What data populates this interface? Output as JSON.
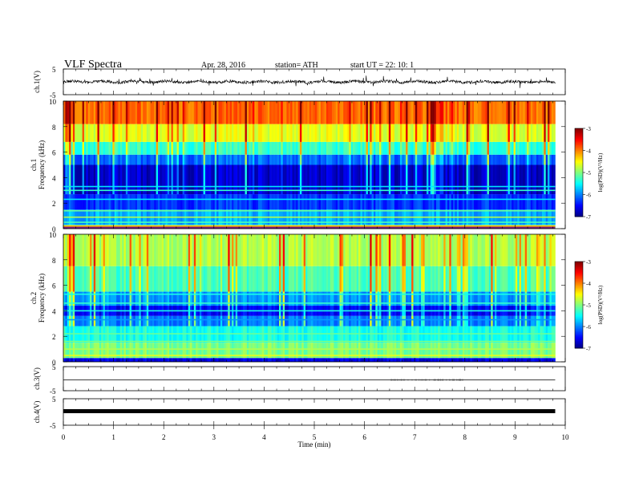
{
  "header": {
    "title": "VLF  Spectra",
    "date": "Apr. 28, 2016",
    "station": "station= ATH",
    "start": "start  UT  =    22: 10: 1"
  },
  "chart_data": [
    {
      "type": "line",
      "panel": "ch1",
      "ylabel": "ch.1(V)",
      "yticks": [
        "5",
        "-5"
      ],
      "ylim": [
        -5,
        5
      ],
      "xlim": [
        0,
        10
      ],
      "data_end_min": 9.8,
      "description_level": "noisy trace centered near 0 V with spikes to about ±2 V"
    },
    {
      "type": "heatmap",
      "panel": "ch1-spectrogram",
      "ylabel": "ch.1\nFrequency (kHz)",
      "ylim": [
        0,
        10
      ],
      "yticks": [
        "10",
        "8",
        "6",
        "4",
        "2",
        "0"
      ],
      "xlim": [
        0,
        10
      ],
      "colorbar": {
        "label": "log(PSD)(V²/Hz)",
        "range": [
          -7,
          -3
        ],
        "ticks": [
          "-3",
          "-4",
          "-5",
          "-6",
          "-7"
        ]
      },
      "bands": [
        {
          "from": 0.0,
          "to": 0.3,
          "level": -5.0
        },
        {
          "from": 0.3,
          "to": 1.5,
          "level": -5.8
        },
        {
          "from": 1.5,
          "to": 2.7,
          "level": -6.3
        },
        {
          "from": 2.7,
          "to": 5.0,
          "level": -6.7
        },
        {
          "from": 5.0,
          "to": 5.8,
          "level": -6.1
        },
        {
          "from": 5.8,
          "to": 6.8,
          "level": -5.3
        },
        {
          "from": 6.8,
          "to": 8.2,
          "level": -4.6
        },
        {
          "from": 8.2,
          "to": 10.0,
          "level": -3.9
        }
      ]
    },
    {
      "type": "heatmap",
      "panel": "ch2-spectrogram",
      "ylabel": "ch.2\nFrequency (kHz)",
      "ylim": [
        0,
        10
      ],
      "yticks": [
        "10",
        "8",
        "6",
        "4",
        "2",
        "0"
      ],
      "xlim": [
        0,
        10
      ],
      "colorbar": {
        "label": "log(PSD)(V²/Hz)",
        "range": [
          -7,
          -3
        ],
        "ticks": [
          "-3",
          "-4",
          "-5",
          "-6",
          "-7"
        ]
      },
      "bands": [
        {
          "from": 0.0,
          "to": 0.3,
          "level": -6.6
        },
        {
          "from": 0.3,
          "to": 1.5,
          "level": -5.0
        },
        {
          "from": 1.5,
          "to": 2.8,
          "level": -5.4
        },
        {
          "from": 2.8,
          "to": 3.6,
          "level": -6.0
        },
        {
          "from": 3.6,
          "to": 4.4,
          "level": -6.5
        },
        {
          "from": 4.4,
          "to": 5.5,
          "level": -5.9
        },
        {
          "from": 5.5,
          "to": 7.5,
          "level": -5.2
        },
        {
          "from": 7.5,
          "to": 10.0,
          "level": -4.8
        }
      ]
    },
    {
      "type": "line",
      "panel": "ch3",
      "ylabel": "ch.3(V)",
      "yticks": [
        "5",
        "-5"
      ],
      "ylim": [
        -5,
        5
      ],
      "xlim": [
        0,
        10
      ],
      "data_end_min": 9.8,
      "level": -0.5
    },
    {
      "type": "line",
      "panel": "ch4",
      "ylabel": "ch.4(V)",
      "yticks": [
        "5",
        "-5"
      ],
      "ylim": [
        -5,
        5
      ],
      "xlim": [
        0,
        10
      ],
      "data_end_min": 9.8,
      "level": 0.3
    }
  ],
  "xaxis": {
    "label": "Time  (min)",
    "ticks": [
      "0",
      "1",
      "2",
      "3",
      "4",
      "5",
      "6",
      "7",
      "8",
      "9",
      "10"
    ]
  }
}
